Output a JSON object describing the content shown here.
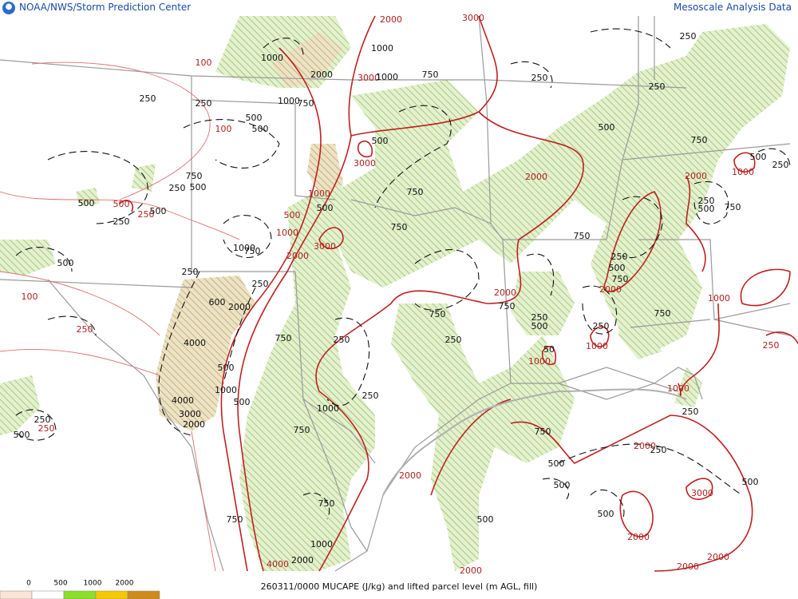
{
  "header": {
    "left": "NOAA/NWS/Storm Prediction Center",
    "right": "Mesoscale Analysis Data"
  },
  "footer": {
    "caption": "260311/0000 MUCAPE (J/kg) and lifted parcel level (m AGL, fill)"
  },
  "legend": {
    "ticks": [
      0,
      500,
      1000,
      2000
    ],
    "colors": [
      "#fbe3d6",
      "#ffffff",
      "#88e028",
      "#f6c800",
      "#cf8a1a"
    ]
  },
  "mucape_labels": [
    2000,
    3000,
    100,
    3000,
    100,
    3000,
    500,
    250,
    1000,
    500,
    1000,
    3000,
    2000,
    100,
    2000,
    2000,
    1000,
    1000,
    1000,
    250,
    1000,
    2000,
    2000,
    3000,
    2000,
    2000,
    2000,
    4000,
    2000,
    2000,
    1000,
    250,
    250,
    2000
  ],
  "lpl_labels": [
    250,
    250,
    750,
    1000,
    1000,
    1000,
    2000,
    1000,
    750,
    250,
    250,
    500,
    500,
    500,
    250,
    500,
    750,
    500,
    250,
    750,
    500,
    250,
    500,
    500,
    250,
    750,
    500,
    750,
    1000,
    750,
    500,
    250,
    250,
    600,
    2000,
    750,
    250,
    500,
    750,
    750,
    250,
    500,
    750,
    750,
    250,
    500,
    750,
    250,
    4000,
    250,
    750,
    50,
    500,
    1000,
    500,
    4000,
    3000,
    2000,
    250,
    1000,
    750,
    250,
    250,
    500,
    750,
    500,
    250,
    500,
    250,
    500,
    750,
    500,
    500,
    750,
    1000,
    2000
  ]
}
